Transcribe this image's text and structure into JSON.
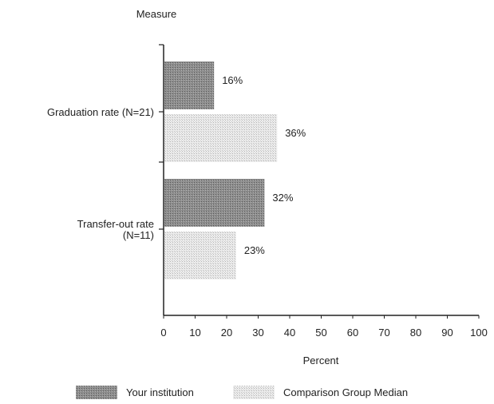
{
  "chart_data": {
    "type": "bar",
    "orientation": "horizontal",
    "title": "",
    "ylabel": "Measure",
    "xlabel": "Percent",
    "xlim": [
      0,
      100
    ],
    "xticks": [
      "0",
      "10",
      "20",
      "30",
      "40",
      "50",
      "60",
      "70",
      "80",
      "90",
      "100"
    ],
    "categories": [
      {
        "label_lines": [
          "Graduation rate (N=21)"
        ]
      },
      {
        "label_lines": [
          "Transfer-out rate",
          "(N=11)"
        ]
      }
    ],
    "series": [
      {
        "name": "Your institution",
        "values": [
          16,
          32
        ],
        "data_labels": [
          "16%",
          "32%"
        ],
        "color": "#8c8c8c",
        "pattern": "dense-dots"
      },
      {
        "name": "Comparison Group Median",
        "values": [
          36,
          23
        ],
        "data_labels": [
          "36%",
          "23%"
        ],
        "color": "#e2e2e2",
        "pattern": "light-dots"
      }
    ],
    "grid": false,
    "legend_position": "bottom"
  }
}
